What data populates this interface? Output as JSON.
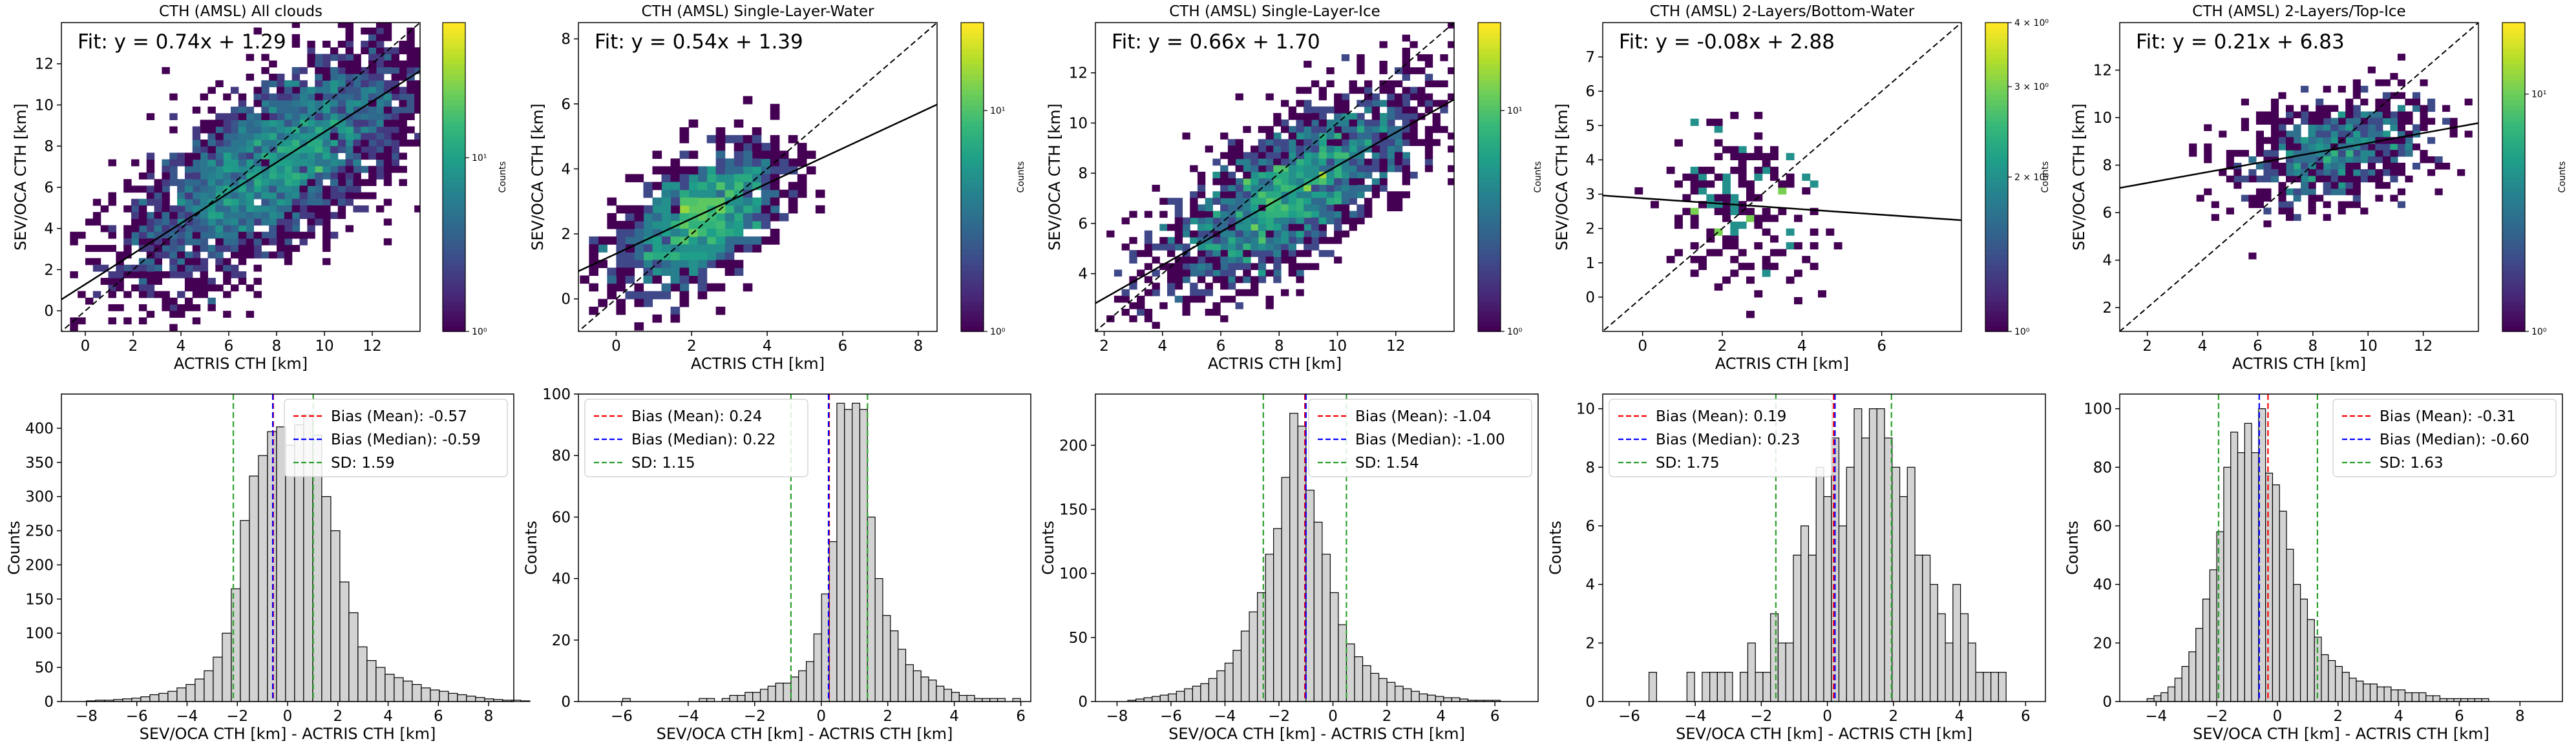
{
  "figure": {
    "colorbar_label": "Counts"
  },
  "chart_data": [
    {
      "type": "heatmap",
      "title": "CTH (AMSL) All clouds",
      "xlabel": "ACTRIS CTH [km]",
      "ylabel": "SEV/OCA CTH [km]",
      "fit_text": "Fit: y = 0.74x + 1.29",
      "fit": {
        "slope": 0.74,
        "intercept": 1.29
      },
      "xlim": [
        -1,
        14
      ],
      "ylim": [
        -1,
        14
      ],
      "xticks": [
        0,
        2,
        4,
        6,
        8,
        10,
        12
      ],
      "yticks": [
        0,
        2,
        4,
        6,
        8,
        10,
        12
      ],
      "xtick_labels": [
        "0",
        "2",
        "4",
        "6",
        "8",
        "10",
        "12"
      ],
      "ytick_labels": [
        "0",
        "2",
        "4",
        "6",
        "8",
        "10",
        "12"
      ],
      "colorbar": {
        "scale": "log",
        "min": 1,
        "max": 60,
        "ticks": [
          1,
          10
        ],
        "tick_labels": [
          "10⁰",
          "10¹"
        ],
        "cmap": "viridis",
        "label": "Counts"
      },
      "density": {
        "cx": 8.0,
        "cy": 7.2,
        "sx": 3.0,
        "sy": 2.8,
        "rho": 0.7,
        "n": 3400,
        "bin": 0.32,
        "seed": 11
      },
      "one_to_one_line": true
    },
    {
      "type": "heatmap",
      "title": "CTH (AMSL) Single-Layer-Water",
      "xlabel": "ACTRIS CTH [km]",
      "ylabel": "SEV/OCA CTH [km]",
      "fit_text": "Fit: y = 0.54x + 1.39",
      "fit": {
        "slope": 0.54,
        "intercept": 1.39
      },
      "xlim": [
        -1,
        8.5
      ],
      "ylim": [
        -1,
        8.5
      ],
      "xticks": [
        0,
        2,
        4,
        6,
        8
      ],
      "yticks": [
        0,
        2,
        4,
        6,
        8
      ],
      "xtick_labels": [
        "0",
        "2",
        "4",
        "6",
        "8"
      ],
      "ytick_labels": [
        "0",
        "2",
        "4",
        "6",
        "8"
      ],
      "colorbar": {
        "scale": "log",
        "min": 1,
        "max": 25,
        "ticks": [
          1,
          10
        ],
        "tick_labels": [
          "10⁰",
          "10¹"
        ],
        "cmap": "viridis",
        "label": "Counts"
      },
      "density": {
        "cx": 2.2,
        "cy": 2.4,
        "sx": 1.1,
        "sy": 1.1,
        "rho": 0.5,
        "n": 1100,
        "bin": 0.24,
        "seed": 23
      },
      "one_to_one_line": true
    },
    {
      "type": "heatmap",
      "title": "CTH (AMSL) Single-Layer-Ice",
      "xlabel": "ACTRIS CTH [km]",
      "ylabel": "SEV/OCA CTH [km]",
      "fit_text": "Fit: y = 0.66x + 1.70",
      "fit": {
        "slope": 0.66,
        "intercept": 1.7
      },
      "xlim": [
        1.7,
        14
      ],
      "ylim": [
        1.7,
        14
      ],
      "xticks": [
        2,
        4,
        6,
        8,
        10,
        12
      ],
      "yticks": [
        4,
        6,
        8,
        10,
        12
      ],
      "xtick_labels": [
        "2",
        "4",
        "6",
        "8",
        "10",
        "12"
      ],
      "ytick_labels": [
        "4",
        "6",
        "8",
        "10",
        "12"
      ],
      "colorbar": {
        "scale": "log",
        "min": 1,
        "max": 25,
        "ticks": [
          1,
          10
        ],
        "tick_labels": [
          "10⁰",
          "10¹"
        ],
        "cmap": "viridis",
        "label": "Counts"
      },
      "density": {
        "cx": 8.3,
        "cy": 7.2,
        "sx": 2.2,
        "sy": 2.0,
        "rho": 0.7,
        "n": 2100,
        "bin": 0.26,
        "seed": 37
      },
      "one_to_one_line": true
    },
    {
      "type": "heatmap",
      "title": "CTH (AMSL) 2-Layers/Bottom-Water",
      "xlabel": "ACTRIS CTH [km]",
      "ylabel": "SEV/OCA CTH [km]",
      "fit_text": "Fit: y = -0.08x + 2.88",
      "fit": {
        "slope": -0.08,
        "intercept": 2.88
      },
      "xlim": [
        -1,
        8
      ],
      "ylim": [
        -1,
        8
      ],
      "xticks": [
        0,
        2,
        4,
        6
      ],
      "yticks": [
        0,
        1,
        2,
        3,
        4,
        5,
        6,
        7
      ],
      "xtick_labels": [
        "0",
        "2",
        "4",
        "6"
      ],
      "ytick_labels": [
        "0",
        "1",
        "2",
        "3",
        "4",
        "5",
        "6",
        "7"
      ],
      "colorbar": {
        "scale": "log",
        "min": 1,
        "max": 4,
        "ticks": [
          1,
          2,
          3,
          4
        ],
        "tick_labels": [
          "10⁰",
          "2 × 10⁰",
          "3 × 10⁰",
          "4 × 10⁰"
        ],
        "cmap": "viridis",
        "label": "Counts"
      },
      "density": {
        "cx": 2.4,
        "cy": 2.6,
        "sx": 1.0,
        "sy": 1.3,
        "rho": -0.05,
        "n": 180,
        "bin": 0.2,
        "seed": 51
      },
      "one_to_one_line": true
    },
    {
      "type": "heatmap",
      "title": "CTH (AMSL) 2-Layers/Top-Ice",
      "xlabel": "ACTRIS CTH [km]",
      "ylabel": "SEV/OCA CTH [km]",
      "fit_text": "Fit: y = 0.21x + 6.83",
      "fit": {
        "slope": 0.21,
        "intercept": 6.83
      },
      "xlim": [
        1,
        14
      ],
      "ylim": [
        1,
        14
      ],
      "xticks": [
        2,
        4,
        6,
        8,
        10,
        12
      ],
      "yticks": [
        2,
        4,
        6,
        8,
        10,
        12
      ],
      "xtick_labels": [
        "2",
        "4",
        "6",
        "8",
        "10",
        "12"
      ],
      "ytick_labels": [
        "2",
        "4",
        "6",
        "8",
        "10",
        "12"
      ],
      "colorbar": {
        "scale": "log",
        "min": 1,
        "max": 20,
        "ticks": [
          1,
          10
        ],
        "tick_labels": [
          "10⁰",
          "10¹"
        ],
        "cmap": "viridis",
        "label": "Counts"
      },
      "density": {
        "cx": 8.8,
        "cy": 8.6,
        "sx": 1.8,
        "sy": 1.2,
        "rho": 0.3,
        "n": 700,
        "bin": 0.27,
        "seed": 63
      },
      "one_to_one_line": true
    },
    {
      "type": "bar",
      "chart": "histogram",
      "xlabel": "SEV/OCA CTH [km] - ACTRIS CTH [km]",
      "ylabel": "Counts",
      "xlim": [
        -9,
        9
      ],
      "ylim": [
        0,
        450
      ],
      "xticks": [
        -8,
        -6,
        -4,
        -2,
        0,
        2,
        4,
        6,
        8
      ],
      "xtick_labels": [
        "−8",
        "−6",
        "−4",
        "−2",
        "0",
        "2",
        "4",
        "6",
        "8"
      ],
      "yticks": [
        0,
        50,
        100,
        150,
        200,
        250,
        300,
        350,
        400
      ],
      "ytick_labels": [
        "0",
        "50",
        "100",
        "150",
        "200",
        "250",
        "300",
        "350",
        "400"
      ],
      "bin_start": -8,
      "bin_width": 0.36,
      "counts": [
        1,
        2,
        2,
        3,
        4,
        5,
        7,
        10,
        12,
        15,
        20,
        25,
        33,
        45,
        65,
        100,
        165,
        265,
        330,
        360,
        395,
        402,
        375,
        405,
        420,
        390,
        300,
        250,
        175,
        130,
        80,
        60,
        50,
        40,
        35,
        30,
        25,
        20,
        17,
        15,
        12,
        10,
        8,
        6,
        4,
        3,
        2,
        2,
        1
      ],
      "lines": {
        "mean": -0.57,
        "median": -0.59,
        "sd": 1.59
      },
      "legend": [
        "Bias (Mean): -0.57",
        "Bias (Median): -0.59",
        "SD: 1.59"
      ],
      "legend_position": "top-right"
    },
    {
      "type": "bar",
      "chart": "histogram",
      "xlabel": "SEV/OCA CTH [km] - ACTRIS CTH [km]",
      "ylabel": "Counts",
      "xlim": [
        -7.3,
        6.3
      ],
      "ylim": [
        0,
        100
      ],
      "xticks": [
        -6,
        -4,
        -2,
        0,
        2,
        4,
        6
      ],
      "xtick_labels": [
        "−6",
        "−4",
        "−2",
        "0",
        "2",
        "4",
        "6"
      ],
      "yticks": [
        0,
        20,
        40,
        60,
        80,
        100
      ],
      "ytick_labels": [
        "0",
        "20",
        "40",
        "60",
        "80",
        "100"
      ],
      "bin_start": -6.2,
      "bin_width": 0.23,
      "counts": [
        0,
        1,
        0,
        0,
        0,
        0,
        0,
        0,
        0,
        0,
        0,
        1,
        1,
        0,
        1,
        2,
        2,
        3,
        3,
        4,
        5,
        6,
        6,
        8,
        10,
        13,
        22,
        35,
        52,
        97,
        95,
        97,
        95,
        60,
        40,
        28,
        23,
        17,
        12,
        10,
        8,
        7,
        5,
        4,
        3,
        2,
        2,
        1,
        1,
        1,
        1,
        0,
        1
      ],
      "lines": {
        "mean": 0.24,
        "median": 0.22,
        "sd": 1.15
      },
      "legend": [
        "Bias (Mean): 0.24",
        "Bias (Median): 0.22",
        "SD: 1.15"
      ],
      "legend_position": "top-left"
    },
    {
      "type": "bar",
      "chart": "histogram",
      "xlabel": "SEV/OCA CTH [km] - ACTRIS CTH [km]",
      "ylabel": "Counts",
      "xlim": [
        -8.8,
        7.6
      ],
      "ylim": [
        0,
        240
      ],
      "xticks": [
        -8,
        -6,
        -4,
        -2,
        0,
        2,
        4,
        6
      ],
      "xtick_labels": [
        "−8",
        "−6",
        "−4",
        "−2",
        "0",
        "2",
        "4",
        "6"
      ],
      "yticks": [
        0,
        50,
        100,
        150,
        200
      ],
      "ytick_labels": [
        "0",
        "50",
        "100",
        "150",
        "200"
      ],
      "bin_start": -7.6,
      "bin_width": 0.3,
      "counts": [
        1,
        2,
        3,
        4,
        5,
        6,
        8,
        10,
        12,
        14,
        18,
        24,
        30,
        40,
        55,
        70,
        85,
        115,
        135,
        175,
        225,
        215,
        165,
        140,
        115,
        85,
        60,
        45,
        35,
        28,
        22,
        18,
        15,
        12,
        10,
        8,
        6,
        5,
        4,
        3,
        3,
        2,
        1,
        1,
        1,
        1
      ],
      "lines": {
        "mean": -1.04,
        "median": -1.0,
        "sd": 1.54
      },
      "legend": [
        "Bias (Mean): -1.04",
        "Bias (Median): -1.00",
        "SD: 1.54"
      ],
      "legend_position": "top-right"
    },
    {
      "type": "bar",
      "chart": "histogram",
      "xlabel": "SEV/OCA CTH [km] - ACTRIS CTH [km]",
      "ylabel": "Counts",
      "xlim": [
        -6.8,
        6.6
      ],
      "ylim": [
        0,
        10.5
      ],
      "xticks": [
        -6,
        -4,
        -2,
        0,
        2,
        4,
        6
      ],
      "xtick_labels": [
        "−6",
        "−4",
        "−2",
        "0",
        "2",
        "4",
        "6"
      ],
      "yticks": [
        0,
        2,
        4,
        6,
        8,
        10
      ],
      "ytick_labels": [
        "0",
        "2",
        "4",
        "6",
        "8",
        "10"
      ],
      "bin_start": -5.4,
      "bin_width": 0.23,
      "counts": [
        1,
        0,
        0,
        0,
        0,
        1,
        0,
        1,
        1,
        1,
        1,
        0,
        1,
        2,
        1,
        1,
        3,
        2,
        2,
        5,
        6,
        5,
        8,
        7,
        9,
        6,
        8,
        10,
        9,
        10,
        10,
        9,
        8,
        7,
        8,
        5,
        5,
        4,
        3,
        2,
        4,
        3,
        2,
        1,
        1,
        1,
        1
      ],
      "lines": {
        "mean": 0.19,
        "median": 0.23,
        "sd": 1.75
      },
      "legend": [
        "Bias (Mean): 0.19",
        "Bias (Median): 0.23",
        "SD: 1.75"
      ],
      "legend_position": "top-left"
    },
    {
      "type": "bar",
      "chart": "histogram",
      "xlabel": "SEV/OCA CTH [km] - ACTRIS CTH [km]",
      "ylabel": "Counts",
      "xlim": [
        -5.2,
        9.4
      ],
      "ylim": [
        0,
        105
      ],
      "xticks": [
        -4,
        -2,
        0,
        2,
        4,
        6,
        8
      ],
      "xtick_labels": [
        "−4",
        "−2",
        "0",
        "2",
        "4",
        "6",
        "8"
      ],
      "yticks": [
        0,
        20,
        40,
        60,
        80,
        100
      ],
      "ytick_labels": [
        "0",
        "20",
        "40",
        "60",
        "80",
        "100"
      ],
      "bin_start": -4.3,
      "bin_width": 0.23,
      "counts": [
        1,
        2,
        3,
        5,
        8,
        12,
        17,
        25,
        35,
        45,
        58,
        80,
        92,
        85,
        95,
        85,
        100,
        78,
        74,
        65,
        52,
        40,
        35,
        28,
        22,
        16,
        14,
        12,
        10,
        8,
        7,
        6,
        6,
        5,
        5,
        4,
        4,
        3,
        3,
        3,
        2,
        2,
        1,
        1,
        1,
        1,
        1,
        1,
        1
      ],
      "lines": {
        "mean": -0.31,
        "median": -0.6,
        "sd": 1.63
      },
      "legend": [
        "Bias (Mean): -0.31",
        "Bias (Median): -0.60",
        "SD: 1.63"
      ],
      "legend_position": "top-right"
    }
  ]
}
